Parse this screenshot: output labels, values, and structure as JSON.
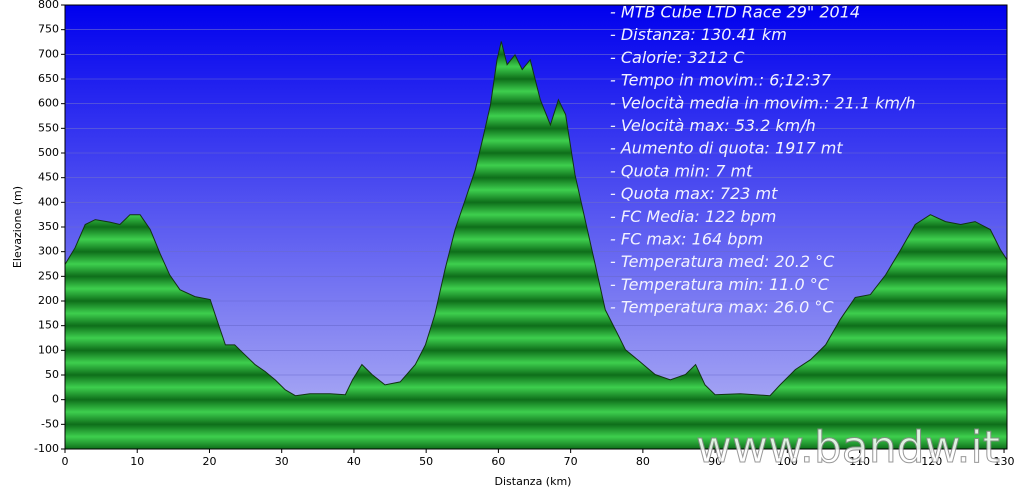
{
  "chart_data": {
    "type": "area",
    "xlabel": "Distanza  (km)",
    "ylabel": "Elevazione (m)",
    "x": [
      0,
      1.4,
      2.8,
      4.2,
      6.2,
      7.6,
      9.0,
      10.4,
      11.8,
      13.2,
      14.5,
      15.9,
      18.0,
      20.1,
      20.8,
      22.2,
      23.5,
      24.9,
      26.3,
      27.7,
      29.1,
      30.5,
      31.9,
      33.9,
      36.7,
      38.8,
      39.8,
      41.1,
      42.5,
      44.3,
      46.4,
      48.5,
      49.9,
      51.2,
      52.6,
      54.0,
      55.4,
      56.8,
      57.8,
      58.9,
      59.8,
      60.4,
      61.2,
      62.3,
      63.3,
      64.4,
      65.8,
      67.2,
      68.3,
      69.3,
      70.6,
      72.0,
      73.4,
      74.8,
      76.2,
      77.6,
      79.6,
      81.7,
      83.8,
      85.9,
      87.3,
      88.6,
      90.0,
      93.5,
      97.6,
      99.0,
      101.1,
      103.2,
      105.3,
      107.3,
      109.4,
      111.5,
      113.6,
      115.7,
      117.7,
      119.8,
      121.9,
      124.0,
      126.0,
      128.1,
      129.5,
      130.4
    ],
    "series": [
      {
        "name": "Elevazione",
        "color": "#1c9a2c",
        "values": [
          274,
          308,
          355,
          365,
          360,
          355,
          375,
          375,
          345,
          295,
          253,
          223,
          209,
          203,
          172,
          111,
          111,
          91,
          71,
          57,
          40,
          20,
          8,
          12,
          12,
          10,
          40,
          71,
          51,
          30,
          36,
          71,
          111,
          172,
          263,
          345,
          405,
          466,
          527,
          598,
          689,
          726,
          679,
          699,
          669,
          689,
          608,
          557,
          608,
          578,
          456,
          365,
          274,
          182,
          142,
          101,
          77,
          51,
          40,
          51,
          71,
          30,
          10,
          12,
          8,
          30,
          61,
          81,
          111,
          162,
          207,
          213,
          253,
          304,
          355,
          375,
          361,
          355,
          361,
          345,
          304,
          284
        ]
      }
    ],
    "xlim": [
      0,
      130.41
    ],
    "ylim": [
      -100,
      800
    ],
    "xticks": [
      0,
      10,
      20,
      30,
      40,
      50,
      60,
      70,
      80,
      90,
      100,
      110,
      120,
      130
    ],
    "yticks": [
      -100,
      -50,
      0,
      50,
      100,
      150,
      200,
      250,
      300,
      350,
      400,
      450,
      500,
      550,
      600,
      650,
      700,
      750,
      800
    ],
    "grid": true,
    "annotations": [
      "- MTB Cube LTD Race 29\" 2014",
      "- Distanza: 130.41 km",
      "- Calorie: 3212 C",
      "- Tempo in movim.: 6;12:37",
      "- Velocità media in movim.: 21.1 km/h",
      "- Velocità max: 53.2 km/h",
      "- Aumento di quota: 1917 mt",
      "- Quota min: 7 mt",
      "- Quota max: 723 mt",
      "- FC Media: 122 bpm",
      "- FC max: 164 bpm",
      "- Temperatura med: 20.2 °C",
      "- Temperatura min: 11.0 °C",
      "- Temperatura max: 26.0 °C"
    ],
    "watermark": "www.bandw.it"
  }
}
